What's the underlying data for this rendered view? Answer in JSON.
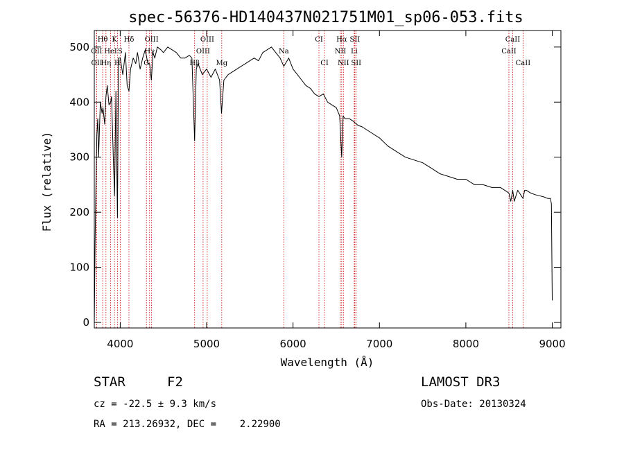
{
  "chart_data": {
    "type": "line",
    "title": "spec-56376-HD140437N021751M01_sp06-053.fits",
    "xlabel": "Wavelength (Å)",
    "ylabel": "Flux (relative)",
    "xlim": [
      3700,
      9100
    ],
    "ylim": [
      -10,
      530
    ],
    "xticks": [
      4000,
      5000,
      6000,
      7000,
      8000,
      9000
    ],
    "yticks": [
      0,
      100,
      200,
      300,
      400,
      500
    ],
    "series": [
      {
        "name": "flux",
        "x": [
          3700,
          3710,
          3720,
          3730,
          3740,
          3750,
          3770,
          3790,
          3800,
          3820,
          3835,
          3850,
          3870,
          3889,
          3900,
          3920,
          3934,
          3950,
          3968,
          3980,
          4000,
          4030,
          4060,
          4080,
          4101,
          4120,
          4150,
          4180,
          4200,
          4230,
          4260,
          4290,
          4320,
          4340,
          4360,
          4380,
          4400,
          4430,
          4470,
          4500,
          4550,
          4600,
          4650,
          4700,
          4750,
          4800,
          4830,
          4861,
          4880,
          4900,
          4950,
          5000,
          5050,
          5100,
          5150,
          5172,
          5200,
          5250,
          5300,
          5350,
          5400,
          5450,
          5500,
          5550,
          5600,
          5650,
          5700,
          5750,
          5800,
          5850,
          5893,
          5950,
          6000,
          6050,
          6100,
          6150,
          6200,
          6250,
          6300,
          6350,
          6400,
          6450,
          6500,
          6540,
          6563,
          6580,
          6600,
          6650,
          6700,
          6750,
          6800,
          6900,
          7000,
          7100,
          7200,
          7300,
          7400,
          7500,
          7600,
          7700,
          7800,
          7900,
          8000,
          8100,
          8200,
          8300,
          8400,
          8450,
          8498,
          8520,
          8542,
          8560,
          8600,
          8662,
          8680,
          8700,
          8750,
          8800,
          8850,
          8900,
          8950,
          8980,
          8990,
          9000
        ],
        "y": [
          -5,
          150,
          260,
          340,
          370,
          300,
          400,
          380,
          390,
          360,
          410,
          430,
          395,
          400,
          410,
          300,
          230,
          420,
          190,
          480,
          480,
          450,
          490,
          430,
          420,
          460,
          480,
          470,
          490,
          460,
          480,
          495,
          470,
          470,
          440,
          490,
          480,
          500,
          495,
          490,
          500,
          495,
          490,
          480,
          480,
          485,
          480,
          330,
          460,
          470,
          450,
          460,
          445,
          460,
          440,
          380,
          440,
          450,
          455,
          460,
          465,
          470,
          475,
          480,
          475,
          490,
          495,
          500,
          490,
          480,
          465,
          480,
          460,
          450,
          440,
          430,
          425,
          415,
          410,
          415,
          400,
          395,
          390,
          375,
          300,
          375,
          370,
          370,
          365,
          358,
          355,
          345,
          335,
          320,
          310,
          300,
          295,
          290,
          280,
          270,
          265,
          260,
          260,
          250,
          250,
          245,
          245,
          240,
          235,
          220,
          240,
          220,
          240,
          225,
          240,
          240,
          235,
          232,
          230,
          228,
          225,
          225,
          215,
          40
        ]
      }
    ],
    "spectral_lines": [
      {
        "label": "Hθ",
        "wave": 3797,
        "row": 0
      },
      {
        "label": "K",
        "wave": 3934,
        "row": 0
      },
      {
        "label": "Hδ",
        "wave": 4101,
        "row": 0
      },
      {
        "label": "OIII",
        "wave": 4363,
        "row": 0
      },
      {
        "label": "OIII",
        "wave": 5007,
        "row": 0
      },
      {
        "label": "CI",
        "wave": 6300,
        "row": 0
      },
      {
        "label": "Hα",
        "wave": 6563,
        "row": 0
      },
      {
        "label": "SII",
        "wave": 6716,
        "row": 0
      },
      {
        "label": "CaII",
        "wave": 8542,
        "row": 0
      },
      {
        "label": "OII",
        "wave": 3727,
        "row": 1
      },
      {
        "label": "HeI",
        "wave": 3889,
        "row": 1
      },
      {
        "label": "S",
        "wave": 4000,
        "row": 1
      },
      {
        "label": "Hγ",
        "wave": 4340,
        "row": 1
      },
      {
        "label": "OIII",
        "wave": 4959,
        "row": 1
      },
      {
        "label": "Na",
        "wave": 5893,
        "row": 1
      },
      {
        "label": "NII",
        "wave": 6548,
        "row": 1
      },
      {
        "label": "Li",
        "wave": 6708,
        "row": 1
      },
      {
        "label": "CaII",
        "wave": 8498,
        "row": 1
      },
      {
        "label": "OII",
        "wave": 3729,
        "row": 2
      },
      {
        "label": "Hη",
        "wave": 3835,
        "row": 2
      },
      {
        "label": "H",
        "wave": 3968,
        "row": 2
      },
      {
        "label": "G",
        "wave": 4304,
        "row": 2
      },
      {
        "label": "Hβ",
        "wave": 4861,
        "row": 2
      },
      {
        "label": "Mg",
        "wave": 5175,
        "row": 2
      },
      {
        "label": "CI",
        "wave": 6364,
        "row": 2
      },
      {
        "label": "NII",
        "wave": 6583,
        "row": 2
      },
      {
        "label": "SII",
        "wave": 6731,
        "row": 2
      },
      {
        "label": "CaII",
        "wave": 8662,
        "row": 2
      }
    ],
    "grid": false
  },
  "info": {
    "object_type": "STAR",
    "subclass": "F2",
    "survey": "LAMOST DR3",
    "cz": "cz = -22.5 ± 9.3 km/s",
    "obs_date": "Obs-Date: 20130324",
    "coords": "RA = 213.26932, DEC =    2.22900"
  },
  "colors": {
    "line_marker": "#cc0000",
    "spectrum": "#000000"
  }
}
